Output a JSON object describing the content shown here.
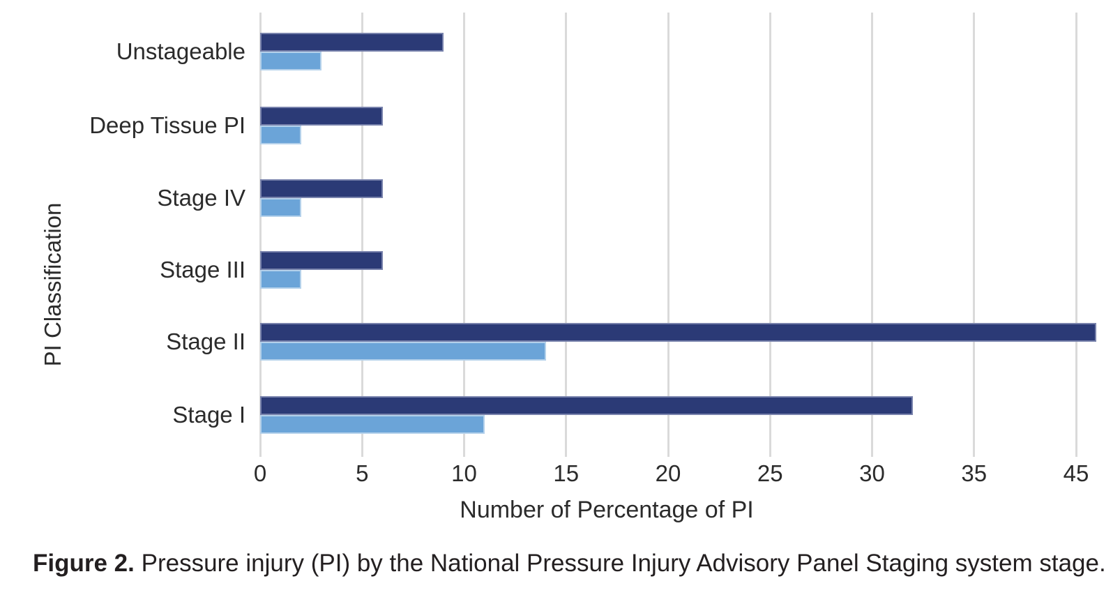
{
  "figure": {
    "caption_label": "Figure 2.",
    "caption_rest": " Pressure injury (PI) by the National Pressure Injury Advisory Panel Staging system stage."
  },
  "chart_data": {
    "type": "bar",
    "orientation": "horizontal",
    "title": "",
    "xlabel": "Number of Percentage of PI",
    "ylabel": "PI Classification",
    "categories": [
      "Unstageable",
      "Deep Tissue PI",
      "Stage IV",
      "Stage III",
      "Stage II",
      "Stage I"
    ],
    "series": [
      {
        "name": "series-dark-blue",
        "color": "#2b3a76",
        "values": [
          9,
          6,
          6,
          6,
          41,
          32
        ]
      },
      {
        "name": "series-light-blue",
        "color": "#6ba4d8",
        "values": [
          3,
          2,
          2,
          2,
          14,
          11
        ]
      }
    ],
    "x_tick_labels": [
      "0",
      "5",
      "10",
      "15",
      "20",
      "25",
      "30",
      "35",
      "45"
    ],
    "x_units_per_gridline": 5,
    "x_value_at_last_gridline": 40,
    "xlim": [
      0,
      41.5
    ],
    "grid": true,
    "legend_position": "none",
    "colors": {
      "gridline": "#dadada",
      "text": "#2b2b2b",
      "background": "#ffffff"
    }
  }
}
